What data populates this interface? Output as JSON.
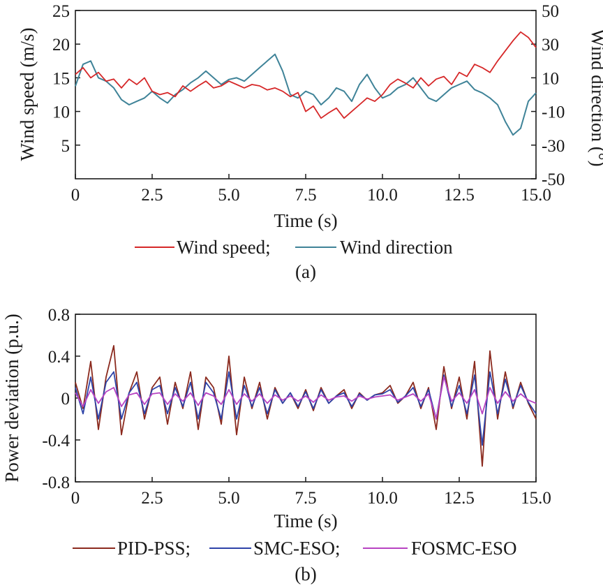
{
  "colors": {
    "wind_speed": "#d62728",
    "wind_direction": "#3f8398",
    "pid_pss": "#8b2a1e",
    "smc_eso": "#2d43a8",
    "fosmc_eso": "#b743c2"
  },
  "chart_data": [
    {
      "id": "a",
      "type": "line",
      "panel_label": "(a)",
      "xlabel": "Time (s)",
      "ylabel_left": "Wind speed (m/s)",
      "ylabel_right": "Wind direction (°)",
      "xlim": [
        0,
        15
      ],
      "ylim_left": [
        0,
        25
      ],
      "ylim_right": [
        -50,
        50
      ],
      "x_ticks": [
        "0",
        "2.5",
        "5.0",
        "7.5",
        "10.0",
        "12.5",
        "15.0"
      ],
      "y_ticks_left": [
        "5",
        "10",
        "15",
        "20",
        "25"
      ],
      "y_ticks_right": [
        "-50",
        "-30",
        "-10",
        "10",
        "30",
        "50"
      ],
      "legend_placement": "bottom-center",
      "series": [
        {
          "name": "Wind speed;",
          "axis": "left",
          "x": [
            0,
            0.25,
            0.5,
            0.75,
            1,
            1.25,
            1.5,
            1.75,
            2,
            2.25,
            2.5,
            2.75,
            3,
            3.25,
            3.5,
            3.75,
            4,
            4.25,
            4.5,
            4.75,
            5,
            5.25,
            5.5,
            5.75,
            6,
            6.25,
            6.5,
            6.75,
            7,
            7.25,
            7.5,
            7.75,
            8,
            8.25,
            8.5,
            8.75,
            9,
            9.25,
            9.5,
            9.75,
            10,
            10.25,
            10.5,
            10.75,
            11,
            11.25,
            11.5,
            11.75,
            12,
            12.25,
            12.5,
            12.75,
            13,
            13.25,
            13.5,
            13.75,
            14,
            14.25,
            14.5,
            14.75,
            15
          ],
          "y": [
            15.5,
            16.5,
            15,
            15.8,
            14.5,
            14.8,
            13.5,
            14.8,
            14,
            15,
            13,
            12.5,
            12.8,
            12.2,
            13.8,
            13,
            13.8,
            14.5,
            13.5,
            13.8,
            14.5,
            14,
            13.5,
            14,
            13.8,
            13.2,
            13.5,
            13,
            12.2,
            12.8,
            10,
            10.8,
            9,
            9.8,
            10.5,
            9,
            10,
            11,
            12,
            11.5,
            12.5,
            14,
            14.8,
            14.2,
            13.5,
            15,
            13.8,
            14.8,
            15.2,
            14,
            15.8,
            15.2,
            17,
            16.5,
            15.8,
            17.5,
            19,
            20.5,
            21.8,
            21,
            19.5
          ]
        },
        {
          "name": "Wind direction",
          "axis": "right",
          "x": [
            0,
            0.25,
            0.5,
            0.75,
            1,
            1.25,
            1.5,
            1.75,
            2,
            2.25,
            2.5,
            2.75,
            3,
            3.25,
            3.5,
            3.75,
            4,
            4.25,
            4.5,
            4.75,
            5,
            5.25,
            5.5,
            5.75,
            6,
            6.25,
            6.5,
            6.75,
            7,
            7.25,
            7.5,
            7.75,
            8,
            8.25,
            8.5,
            8.75,
            9,
            9.25,
            9.5,
            9.75,
            10,
            10.25,
            10.5,
            10.75,
            11,
            11.25,
            11.5,
            11.75,
            12,
            12.25,
            12.5,
            12.75,
            13,
            13.25,
            13.5,
            13.75,
            14,
            14.25,
            14.5,
            14.75,
            15
          ],
          "y": [
            5,
            18,
            20,
            10,
            8,
            4,
            -3,
            -6,
            -4,
            -2,
            2,
            -2,
            -5,
            0,
            3,
            7,
            10,
            14,
            10,
            6,
            9,
            10,
            8,
            12,
            16,
            20,
            24,
            14,
            0,
            -2,
            2,
            0,
            -6,
            -2,
            4,
            2,
            -4,
            6,
            12,
            4,
            -2,
            0,
            4,
            6,
            10,
            4,
            -2,
            -4,
            0,
            4,
            6,
            8,
            3,
            1,
            -2,
            -6,
            -16,
            -24,
            -20,
            -4,
            1
          ]
        }
      ]
    },
    {
      "id": "b",
      "type": "line",
      "panel_label": "(b)",
      "xlabel": "Time (s)",
      "ylabel": "Power deviation (p.u.)",
      "xlim": [
        0,
        15
      ],
      "ylim": [
        -0.8,
        0.8
      ],
      "x_ticks": [
        "0",
        "2.5",
        "5.0",
        "7.5",
        "10.0",
        "12.5",
        "15.0"
      ],
      "y_ticks": [
        "-0.8",
        "-0.4",
        "0",
        "0.4",
        "0.8"
      ],
      "legend_placement": "bottom-center",
      "series": [
        {
          "name": "PID-PSS;",
          "x": [
            0,
            0.25,
            0.5,
            0.75,
            1,
            1.25,
            1.5,
            1.75,
            2,
            2.25,
            2.5,
            2.75,
            3,
            3.25,
            3.5,
            3.75,
            4,
            4.25,
            4.5,
            4.75,
            5,
            5.25,
            5.5,
            5.75,
            6,
            6.25,
            6.5,
            6.75,
            7,
            7.25,
            7.5,
            7.75,
            8,
            8.25,
            8.5,
            8.75,
            9,
            9.25,
            9.5,
            9.75,
            10,
            10.25,
            10.5,
            10.75,
            11,
            11.25,
            11.5,
            11.75,
            12,
            12.25,
            12.5,
            12.75,
            13,
            13.25,
            13.5,
            13.75,
            14,
            14.25,
            14.5,
            14.75,
            15
          ],
          "y": [
            0.15,
            -0.1,
            0.35,
            -0.3,
            0.2,
            0.5,
            -0.35,
            0.05,
            0.25,
            -0.2,
            0.1,
            0.2,
            -0.25,
            0.15,
            -0.1,
            0.25,
            -0.3,
            0.2,
            0.1,
            -0.25,
            0.4,
            -0.35,
            0.2,
            -0.1,
            0.15,
            -0.2,
            0.1,
            -0.05,
            0.05,
            -0.1,
            0.08,
            -0.12,
            0.1,
            -0.05,
            0.02,
            0.08,
            -0.1,
            0.05,
            -0.02,
            0.03,
            0.05,
            0.12,
            -0.05,
            0.02,
            0.15,
            -0.1,
            0.1,
            -0.3,
            0.3,
            -0.1,
            0.2,
            -0.2,
            0.35,
            -0.65,
            0.45,
            -0.2,
            0.25,
            -0.1,
            0.15,
            -0.05,
            -0.2
          ]
        },
        {
          "name": "SMC-ESO;",
          "x": [
            0,
            0.25,
            0.5,
            0.75,
            1,
            1.25,
            1.5,
            1.75,
            2,
            2.25,
            2.5,
            2.75,
            3,
            3.25,
            3.5,
            3.75,
            4,
            4.25,
            4.5,
            4.75,
            5,
            5.25,
            5.5,
            5.75,
            6,
            6.25,
            6.5,
            6.75,
            7,
            7.25,
            7.5,
            7.75,
            8,
            8.25,
            8.5,
            8.75,
            9,
            9.25,
            9.5,
            9.75,
            10,
            10.25,
            10.5,
            10.75,
            11,
            11.25,
            11.5,
            11.75,
            12,
            12.25,
            12.5,
            12.75,
            13,
            13.25,
            13.5,
            13.75,
            14,
            14.25,
            14.5,
            14.75,
            15
          ],
          "y": [
            0.1,
            -0.15,
            0.2,
            -0.2,
            0.15,
            0.25,
            -0.2,
            0.05,
            0.15,
            -0.15,
            0.08,
            0.12,
            -0.15,
            0.1,
            -0.08,
            0.15,
            -0.2,
            0.15,
            0.05,
            -0.2,
            0.25,
            -0.2,
            0.12,
            -0.08,
            0.1,
            -0.15,
            0.08,
            -0.05,
            0.05,
            -0.08,
            0.06,
            -0.1,
            0.08,
            -0.05,
            0.02,
            0.05,
            -0.08,
            0.04,
            -0.02,
            0.03,
            0.04,
            0.08,
            -0.04,
            0.02,
            0.1,
            -0.08,
            0.08,
            -0.2,
            0.22,
            -0.08,
            0.12,
            -0.15,
            0.22,
            -0.45,
            0.25,
            -0.15,
            0.18,
            -0.08,
            0.12,
            -0.04,
            -0.15
          ]
        },
        {
          "name": "FOSMC-ESO",
          "x": [
            0,
            0.25,
            0.5,
            0.75,
            1,
            1.25,
            1.5,
            1.75,
            2,
            2.25,
            2.5,
            2.75,
            3,
            3.25,
            3.5,
            3.75,
            4,
            4.25,
            4.5,
            4.75,
            5,
            5.25,
            5.5,
            5.75,
            6,
            6.25,
            6.5,
            6.75,
            7,
            7.25,
            7.5,
            7.75,
            8,
            8.25,
            8.5,
            8.75,
            9,
            9.25,
            9.5,
            9.75,
            10,
            10.25,
            10.5,
            10.75,
            11,
            11.25,
            11.5,
            11.75,
            12,
            12.25,
            12.5,
            12.75,
            13,
            13.25,
            13.5,
            13.75,
            14,
            14.25,
            14.5,
            14.75,
            15
          ],
          "y": [
            0.05,
            -0.08,
            0.08,
            -0.05,
            0.06,
            0.1,
            -0.08,
            0.03,
            0.05,
            -0.06,
            0.04,
            0.05,
            -0.06,
            0.04,
            -0.03,
            0.05,
            -0.07,
            0.05,
            0.02,
            -0.06,
            0.08,
            -0.06,
            0.04,
            -0.03,
            0.04,
            -0.05,
            0.03,
            -0.02,
            0.02,
            -0.03,
            0.02,
            -0.04,
            0.03,
            -0.02,
            0.01,
            0.02,
            -0.03,
            0.02,
            -0.01,
            0.01,
            0.02,
            0.03,
            -0.02,
            0.01,
            0.04,
            -0.03,
            0.04,
            -0.2,
            0.2,
            -0.03,
            0.05,
            -0.05,
            0.08,
            -0.15,
            0.1,
            -0.05,
            0.06,
            -0.03,
            0.04,
            -0.02,
            -0.05
          ]
        }
      ]
    }
  ]
}
